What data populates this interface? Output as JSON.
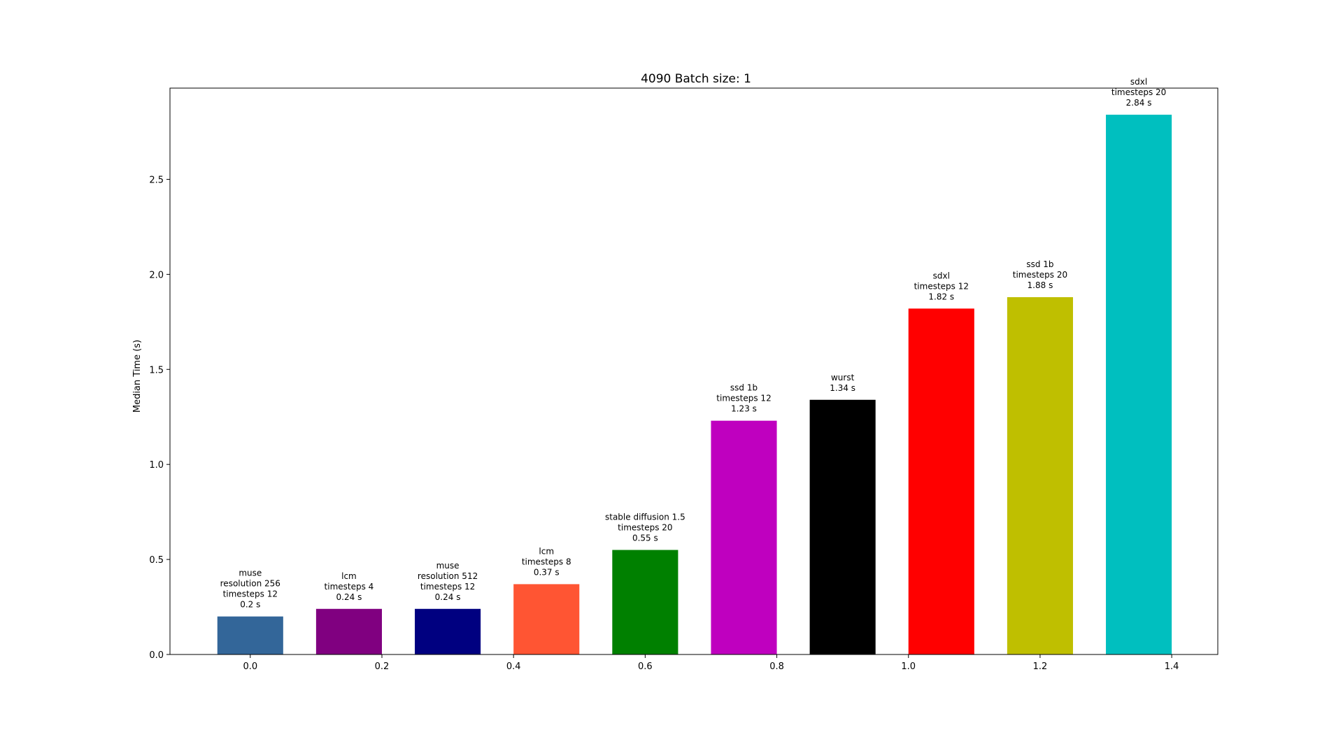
{
  "chart_data": {
    "type": "bar",
    "title": "4090 Batch size: 1",
    "xlabel": "",
    "ylabel": "Median Time (s)",
    "xlim": [
      -0.122,
      1.47
    ],
    "ylim": [
      0,
      2.98
    ],
    "xticks": [
      0.0,
      0.2,
      0.4,
      0.6,
      0.8,
      1.0,
      1.2,
      1.4
    ],
    "xtick_labels": [
      "0.0",
      "0.2",
      "0.4",
      "0.6",
      "0.8",
      "1.0",
      "1.2",
      "1.4"
    ],
    "yticks": [
      0.0,
      0.5,
      1.0,
      1.5,
      2.0,
      2.5
    ],
    "ytick_labels": [
      "0.0",
      "0.5",
      "1.0",
      "1.5",
      "2.0",
      "2.5"
    ],
    "bar_width": 0.1,
    "grid": false,
    "bars": [
      {
        "x": 0.0,
        "value": 0.2,
        "color": "#336699",
        "label": [
          "muse",
          "resolution 256",
          "timesteps 12",
          "0.2 s"
        ]
      },
      {
        "x": 0.15,
        "value": 0.24,
        "color": "#800080",
        "label": [
          "lcm",
          "timesteps 4",
          "0.24 s"
        ]
      },
      {
        "x": 0.3,
        "value": 0.24,
        "color": "#000080",
        "label": [
          "muse",
          "resolution 512",
          "timesteps 12",
          "0.24 s"
        ]
      },
      {
        "x": 0.45,
        "value": 0.37,
        "color": "#FF5533",
        "label": [
          "lcm",
          "timesteps 8",
          "0.37 s"
        ]
      },
      {
        "x": 0.6,
        "value": 0.55,
        "color": "#008000",
        "label": [
          "stable diffusion 1.5",
          "timesteps 20",
          "0.55 s"
        ]
      },
      {
        "x": 0.75,
        "value": 1.23,
        "color": "#BF00BF",
        "label": [
          "ssd 1b",
          "timesteps 12",
          "1.23 s"
        ]
      },
      {
        "x": 0.9,
        "value": 1.34,
        "color": "#000000",
        "label": [
          "wurst",
          "1.34 s"
        ]
      },
      {
        "x": 1.05,
        "value": 1.82,
        "color": "#FF0000",
        "label": [
          "sdxl",
          "timesteps 12",
          "1.82 s"
        ]
      },
      {
        "x": 1.2,
        "value": 1.88,
        "color": "#BFBF00",
        "label": [
          "ssd 1b",
          "timesteps 20",
          "1.88 s"
        ]
      },
      {
        "x": 1.35,
        "value": 2.84,
        "color": "#00BFBF",
        "label": [
          "sdxl",
          "timesteps 20",
          "2.84 s"
        ]
      }
    ]
  }
}
